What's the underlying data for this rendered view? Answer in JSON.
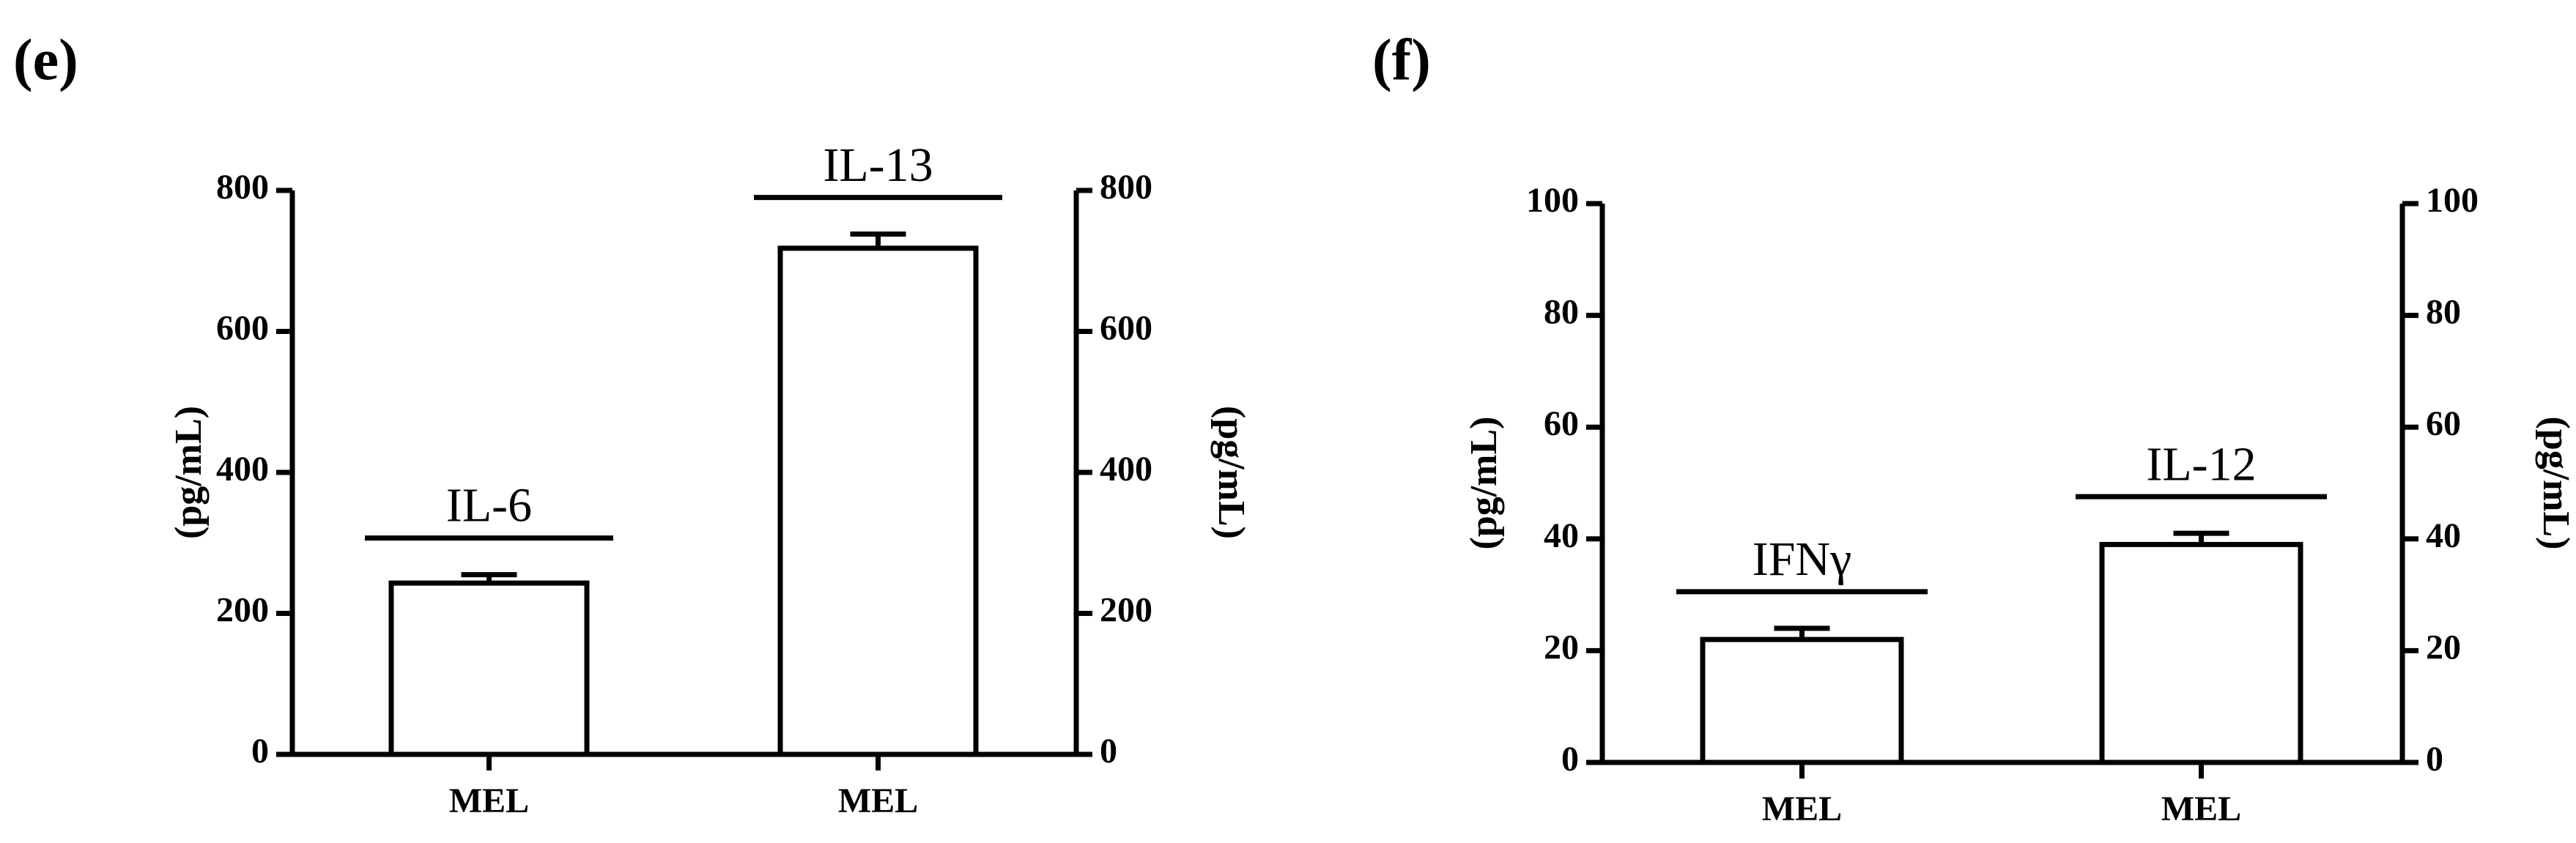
{
  "chart_data": [
    {
      "type": "bar",
      "panel": "(e)",
      "categories": [
        "MEL",
        "MEL"
      ],
      "bar_labels": [
        "IL-6",
        "IL-13"
      ],
      "values": [
        243,
        718
      ],
      "errors": [
        12,
        20
      ],
      "color": "#ffffff",
      "ylabel": "(pg/mL)",
      "y2label": "(pg/mL)",
      "ylim": [
        0,
        800
      ],
      "yticks": [
        0,
        200,
        400,
        600,
        800
      ],
      "y2lim": [
        0,
        800
      ],
      "y2ticks": [
        0,
        200,
        400,
        600,
        800
      ]
    },
    {
      "type": "bar",
      "panel": "(f)",
      "categories": [
        "MEL",
        "MEL"
      ],
      "bar_labels": [
        "IFNγ",
        "IL-12"
      ],
      "values": [
        22,
        39
      ],
      "errors": [
        2,
        2
      ],
      "color": "#ffffff",
      "ylabel": "(pg/mL)",
      "y2label": "(pg/mL)",
      "ylim": [
        0,
        100
      ],
      "yticks": [
        0,
        20,
        40,
        60,
        80,
        100
      ],
      "y2lim": [
        0,
        100
      ],
      "y2ticks": [
        0,
        20,
        40,
        60,
        80,
        100
      ]
    }
  ]
}
